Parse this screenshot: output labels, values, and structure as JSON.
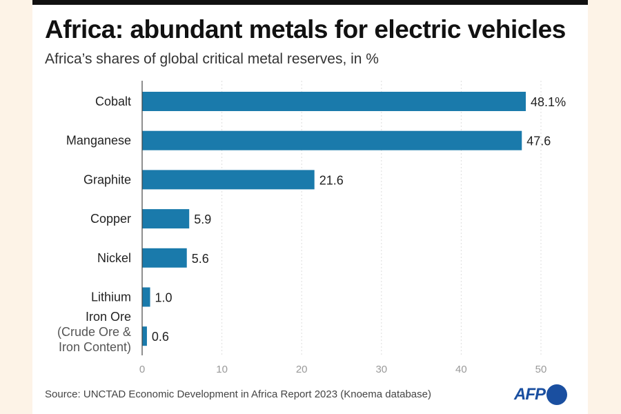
{
  "header": {
    "title": "Africa: abundant metals for electric vehicles",
    "subtitle": "Africa’s shares of global critical metal reserves, in %"
  },
  "footer": {
    "source": "Source: UNCTAD Economic Development in Africa Report 2023 (Knoema database)",
    "logo_text": "AFP"
  },
  "colors": {
    "bar": "#1a7aab",
    "background": "#fdf3e7",
    "logo": "#1a4fa0"
  },
  "chart_data": {
    "type": "bar",
    "orientation": "horizontal",
    "title": "Africa: abundant metals for electric vehicles",
    "subtitle": "Africa’s shares of global critical metal reserves, in %",
    "xlabel": "",
    "ylabel": "",
    "categories": [
      [
        "Cobalt"
      ],
      [
        "Manganese"
      ],
      [
        "Graphite"
      ],
      [
        "Copper"
      ],
      [
        "Nickel"
      ],
      [
        "Lithium"
      ],
      [
        "Iron Ore",
        "(Crude Ore &",
        "Iron Content)"
      ]
    ],
    "values": [
      48.1,
      47.6,
      21.6,
      5.9,
      5.6,
      1.0,
      0.6
    ],
    "value_labels": [
      "48.1%",
      "47.6",
      "21.6",
      "5.9",
      "5.6",
      "1.0",
      "0.6"
    ],
    "xlim": [
      0,
      50
    ],
    "xticks": [
      0,
      10,
      20,
      30,
      40,
      50
    ],
    "grid": "vertical dotted",
    "legend": "none"
  }
}
